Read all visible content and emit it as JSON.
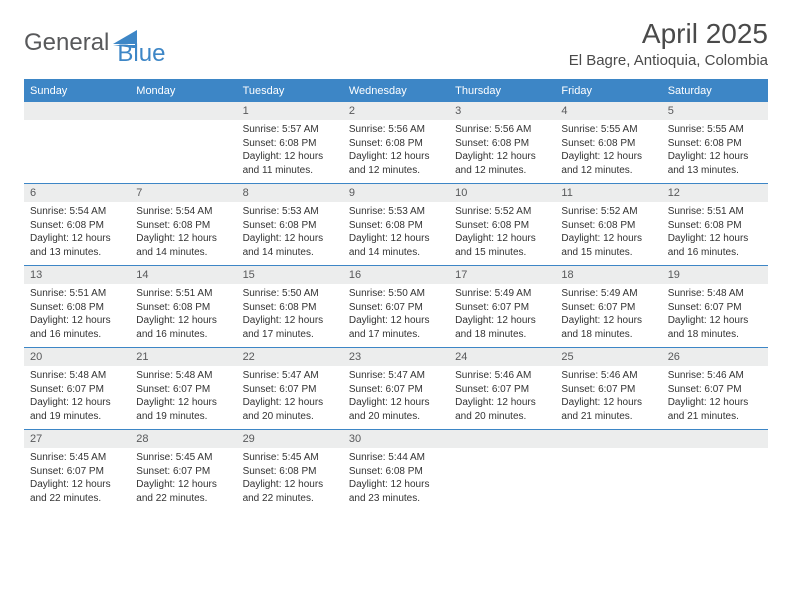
{
  "brand": {
    "part1": "General",
    "part2": "Blue"
  },
  "title": "April 2025",
  "location": "El Bagre, Antioquia, Colombia",
  "colors": {
    "accent": "#3d86c6",
    "header_bg": "#3d86c6",
    "daynum_bg": "#eceded",
    "text_dark": "#4a4a4a",
    "text_body": "#333333"
  },
  "day_names": [
    "Sunday",
    "Monday",
    "Tuesday",
    "Wednesday",
    "Thursday",
    "Friday",
    "Saturday"
  ],
  "weeks": [
    [
      {
        "n": "",
        "lines": []
      },
      {
        "n": "",
        "lines": []
      },
      {
        "n": "1",
        "lines": [
          "Sunrise: 5:57 AM",
          "Sunset: 6:08 PM",
          "Daylight: 12 hours and 11 minutes."
        ]
      },
      {
        "n": "2",
        "lines": [
          "Sunrise: 5:56 AM",
          "Sunset: 6:08 PM",
          "Daylight: 12 hours and 12 minutes."
        ]
      },
      {
        "n": "3",
        "lines": [
          "Sunrise: 5:56 AM",
          "Sunset: 6:08 PM",
          "Daylight: 12 hours and 12 minutes."
        ]
      },
      {
        "n": "4",
        "lines": [
          "Sunrise: 5:55 AM",
          "Sunset: 6:08 PM",
          "Daylight: 12 hours and 12 minutes."
        ]
      },
      {
        "n": "5",
        "lines": [
          "Sunrise: 5:55 AM",
          "Sunset: 6:08 PM",
          "Daylight: 12 hours and 13 minutes."
        ]
      }
    ],
    [
      {
        "n": "6",
        "lines": [
          "Sunrise: 5:54 AM",
          "Sunset: 6:08 PM",
          "Daylight: 12 hours and 13 minutes."
        ]
      },
      {
        "n": "7",
        "lines": [
          "Sunrise: 5:54 AM",
          "Sunset: 6:08 PM",
          "Daylight: 12 hours and 14 minutes."
        ]
      },
      {
        "n": "8",
        "lines": [
          "Sunrise: 5:53 AM",
          "Sunset: 6:08 PM",
          "Daylight: 12 hours and 14 minutes."
        ]
      },
      {
        "n": "9",
        "lines": [
          "Sunrise: 5:53 AM",
          "Sunset: 6:08 PM",
          "Daylight: 12 hours and 14 minutes."
        ]
      },
      {
        "n": "10",
        "lines": [
          "Sunrise: 5:52 AM",
          "Sunset: 6:08 PM",
          "Daylight: 12 hours and 15 minutes."
        ]
      },
      {
        "n": "11",
        "lines": [
          "Sunrise: 5:52 AM",
          "Sunset: 6:08 PM",
          "Daylight: 12 hours and 15 minutes."
        ]
      },
      {
        "n": "12",
        "lines": [
          "Sunrise: 5:51 AM",
          "Sunset: 6:08 PM",
          "Daylight: 12 hours and 16 minutes."
        ]
      }
    ],
    [
      {
        "n": "13",
        "lines": [
          "Sunrise: 5:51 AM",
          "Sunset: 6:08 PM",
          "Daylight: 12 hours and 16 minutes."
        ]
      },
      {
        "n": "14",
        "lines": [
          "Sunrise: 5:51 AM",
          "Sunset: 6:08 PM",
          "Daylight: 12 hours and 16 minutes."
        ]
      },
      {
        "n": "15",
        "lines": [
          "Sunrise: 5:50 AM",
          "Sunset: 6:08 PM",
          "Daylight: 12 hours and 17 minutes."
        ]
      },
      {
        "n": "16",
        "lines": [
          "Sunrise: 5:50 AM",
          "Sunset: 6:07 PM",
          "Daylight: 12 hours and 17 minutes."
        ]
      },
      {
        "n": "17",
        "lines": [
          "Sunrise: 5:49 AM",
          "Sunset: 6:07 PM",
          "Daylight: 12 hours and 18 minutes."
        ]
      },
      {
        "n": "18",
        "lines": [
          "Sunrise: 5:49 AM",
          "Sunset: 6:07 PM",
          "Daylight: 12 hours and 18 minutes."
        ]
      },
      {
        "n": "19",
        "lines": [
          "Sunrise: 5:48 AM",
          "Sunset: 6:07 PM",
          "Daylight: 12 hours and 18 minutes."
        ]
      }
    ],
    [
      {
        "n": "20",
        "lines": [
          "Sunrise: 5:48 AM",
          "Sunset: 6:07 PM",
          "Daylight: 12 hours and 19 minutes."
        ]
      },
      {
        "n": "21",
        "lines": [
          "Sunrise: 5:48 AM",
          "Sunset: 6:07 PM",
          "Daylight: 12 hours and 19 minutes."
        ]
      },
      {
        "n": "22",
        "lines": [
          "Sunrise: 5:47 AM",
          "Sunset: 6:07 PM",
          "Daylight: 12 hours and 20 minutes."
        ]
      },
      {
        "n": "23",
        "lines": [
          "Sunrise: 5:47 AM",
          "Sunset: 6:07 PM",
          "Daylight: 12 hours and 20 minutes."
        ]
      },
      {
        "n": "24",
        "lines": [
          "Sunrise: 5:46 AM",
          "Sunset: 6:07 PM",
          "Daylight: 12 hours and 20 minutes."
        ]
      },
      {
        "n": "25",
        "lines": [
          "Sunrise: 5:46 AM",
          "Sunset: 6:07 PM",
          "Daylight: 12 hours and 21 minutes."
        ]
      },
      {
        "n": "26",
        "lines": [
          "Sunrise: 5:46 AM",
          "Sunset: 6:07 PM",
          "Daylight: 12 hours and 21 minutes."
        ]
      }
    ],
    [
      {
        "n": "27",
        "lines": [
          "Sunrise: 5:45 AM",
          "Sunset: 6:07 PM",
          "Daylight: 12 hours and 22 minutes."
        ]
      },
      {
        "n": "28",
        "lines": [
          "Sunrise: 5:45 AM",
          "Sunset: 6:07 PM",
          "Daylight: 12 hours and 22 minutes."
        ]
      },
      {
        "n": "29",
        "lines": [
          "Sunrise: 5:45 AM",
          "Sunset: 6:08 PM",
          "Daylight: 12 hours and 22 minutes."
        ]
      },
      {
        "n": "30",
        "lines": [
          "Sunrise: 5:44 AM",
          "Sunset: 6:08 PM",
          "Daylight: 12 hours and 23 minutes."
        ]
      },
      {
        "n": "",
        "lines": []
      },
      {
        "n": "",
        "lines": []
      },
      {
        "n": "",
        "lines": []
      }
    ]
  ]
}
